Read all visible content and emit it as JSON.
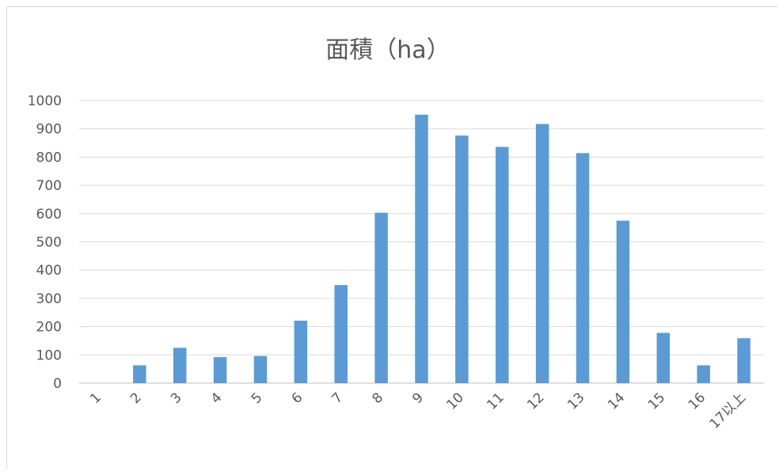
{
  "chart_data": {
    "type": "bar",
    "title": "面積（ha）",
    "categories": [
      "1",
      "2",
      "3",
      "4",
      "5",
      "6",
      "7",
      "8",
      "9",
      "10",
      "11",
      "12",
      "13",
      "14",
      "15",
      "16",
      "17以上"
    ],
    "values": [
      0,
      63,
      125,
      92,
      96,
      221,
      347,
      603,
      950,
      876,
      836,
      917,
      814,
      575,
      178,
      63,
      159
    ],
    "ylim": [
      0,
      1000
    ],
    "yticks": [
      0,
      100,
      200,
      300,
      400,
      500,
      600,
      700,
      800,
      900,
      1000
    ],
    "grid": true,
    "legend": "none",
    "bar_color": "#5b9bd5"
  }
}
